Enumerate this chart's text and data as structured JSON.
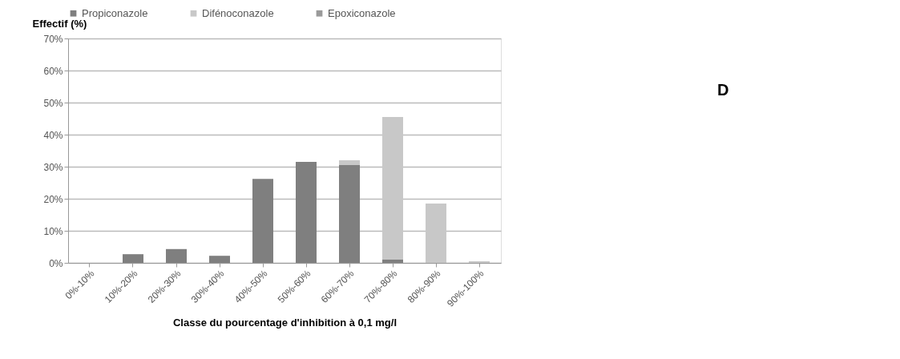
{
  "chart_data": {
    "type": "bar",
    "stacked": true,
    "xlabel": "Classe du pourcentage d'inhibition  à 0,1 mg/l",
    "ylabel": "Effectif (%)",
    "categories": [
      "0%-10%",
      "10%-20%",
      "20%-30%",
      "30%-40%",
      "40%-50%",
      "50%-60%",
      "60%-70%",
      "70%-80%",
      "80%-90%",
      "90%-100%"
    ],
    "series": [
      {
        "name": "Propiconazole",
        "color": "#7f7f7f",
        "values": [
          0,
          2.7,
          4.3,
          2.2,
          26.2,
          31.5,
          30.5,
          1,
          0,
          0
        ]
      },
      {
        "name": "Difénoconazole",
        "color": "#c8c8c8",
        "values": [
          0,
          0,
          0,
          0,
          0,
          0,
          1.5,
          44.5,
          18.5,
          0.5
        ]
      },
      {
        "name": "Epoxiconazole",
        "color": "#9a9a9a",
        "values": [
          0,
          0,
          0,
          0,
          0,
          0,
          0,
          0,
          0,
          0
        ]
      }
    ],
    "ylim": [
      0,
      70
    ],
    "yticks": [
      {
        "value": 0,
        "label": "0%"
      },
      {
        "value": 10,
        "label": "10%"
      },
      {
        "value": 20,
        "label": "20%"
      },
      {
        "value": 30,
        "label": "30%"
      },
      {
        "value": 40,
        "label": "40%"
      },
      {
        "value": 50,
        "label": "50%"
      },
      {
        "value": 60,
        "label": "60%"
      },
      {
        "value": 70,
        "label": "70%"
      }
    ],
    "grid": "y",
    "legend": "top",
    "annotations": [
      "D"
    ]
  }
}
